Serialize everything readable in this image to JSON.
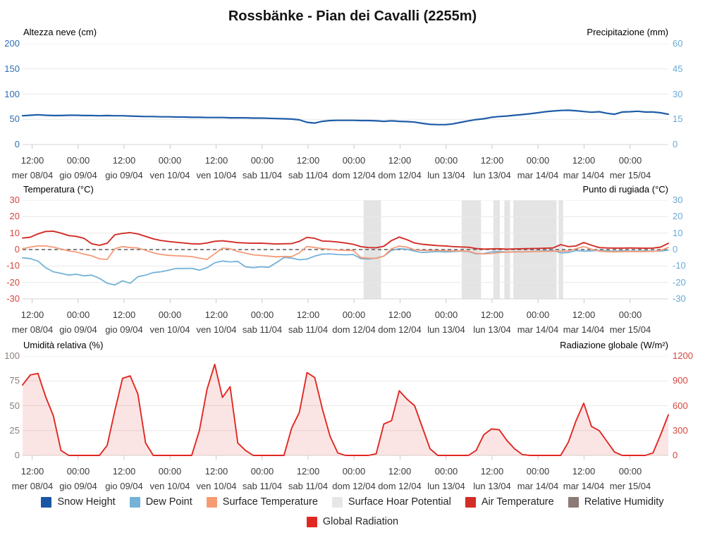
{
  "title": "Rossbänke - Pian dei Cavalli (2255m)",
  "chart_data": {
    "type": "line",
    "x_axis": {
      "first_tick_hour": 2.5,
      "tick_step_hours": 12,
      "total_hours": 168.5,
      "sample_step_hours": 2,
      "tick_times": [
        "12:00",
        "00:00",
        "12:00",
        "00:00",
        "12:00",
        "00:00",
        "12:00",
        "00:00",
        "12:00",
        "00:00",
        "12:00",
        "00:00",
        "12:00",
        "00:00"
      ],
      "tick_dates": [
        "mer 08/04",
        "gio 09/04",
        "gio 09/04",
        "ven 10/04",
        "ven 10/04",
        "sab 11/04",
        "sab 11/04",
        "dom 12/04",
        "dom 12/04",
        "lun 13/04",
        "lun 13/04",
        "mar 14/04",
        "mar 14/04",
        "mer 15/04"
      ]
    },
    "band_color": "#e4e4e4",
    "grid_color": "#e9e9e9",
    "axis_line_color": "#d6d6d6",
    "tick_mark_color": "#c9c9c9",
    "charts": [
      {
        "id": "snow-precipitation",
        "axes": {
          "left": {
            "title": "Altezza neve (cm)",
            "color": "#2e6db4",
            "ticks": [
              "200",
              "150",
              "100",
              "50",
              "0"
            ],
            "min": 0,
            "max": 200
          },
          "right": {
            "title": "Precipitazione (mm)",
            "color": "#69aad6",
            "ticks": [
              "60",
              "45",
              "30",
              "15",
              "0"
            ],
            "min": 0,
            "max": 60
          }
        },
        "series": [
          {
            "name": "snow-height",
            "axis": "left",
            "color": "#1f5da8",
            "width": 2.2,
            "values": [
              57,
              58,
              59,
              58,
              57.5,
              57.5,
              58,
              58,
              57.5,
              57.5,
              57,
              57.5,
              57,
              57,
              56.5,
              56,
              55.5,
              55.5,
              55,
              55,
              54.5,
              54.5,
              54,
              54,
              53.5,
              53.5,
              53.5,
              53,
              53,
              53,
              52.5,
              52.5,
              52,
              51.5,
              51,
              50.5,
              49,
              44,
              42.5,
              46,
              47.5,
              48,
              48,
              48,
              47.5,
              47.5,
              47,
              46,
              47,
              46,
              45.5,
              44.5,
              42,
              40,
              39.5,
              39.5,
              41,
              44,
              47,
              49.5,
              51,
              54,
              55.5,
              56.5,
              58,
              59.5,
              61,
              63,
              65,
              66.5,
              67.5,
              68,
              67,
              65.5,
              64,
              65,
              62,
              60,
              64.5,
              65,
              66,
              64.5,
              64.5,
              63,
              60
            ]
          }
        ]
      },
      {
        "id": "temperature-dewpoint",
        "zero_dashed": true,
        "zero_dash_color": "#5a5a5a",
        "axes": {
          "left": {
            "title": "Temperatura (°C)",
            "color": "#d9453c",
            "ticks": [
              "30",
              "20",
              "10",
              "0",
              "-10",
              "-20",
              "-30"
            ],
            "min": -30,
            "max": 30
          },
          "right": {
            "title": "Punto di rugiada (°C)",
            "color": "#69aad6",
            "ticks": [
              "30",
              "20",
              "10",
              "0",
              "-10",
              "-20",
              "-30"
            ],
            "min": -30,
            "max": 30
          }
        },
        "bands": [
          {
            "from": 0.528,
            "to": 0.555
          },
          {
            "from": 0.68,
            "to": 0.71
          },
          {
            "from": 0.729,
            "to": 0.739
          },
          {
            "from": 0.746,
            "to": 0.755
          },
          {
            "from": 0.76,
            "to": 0.827
          },
          {
            "from": 0.83,
            "to": 0.837
          }
        ],
        "series": [
          {
            "name": "dew-point",
            "axis": "left",
            "color": "#74b2d8",
            "width": 1.8,
            "values": [
              -5,
              -5.5,
              -7,
              -11,
              -13.5,
              -14.5,
              -15.5,
              -15,
              -16,
              -15.5,
              -17.5,
              -20.5,
              -21.5,
              -19,
              -20.5,
              -16.5,
              -15.5,
              -14,
              -13.5,
              -12.5,
              -11.5,
              -11.5,
              -11.4,
              -12.5,
              -11,
              -8,
              -7,
              -7.5,
              -7.2,
              -10.5,
              -11,
              -10.5,
              -10.8,
              -8,
              -4.8,
              -5.2,
              -6.2,
              -5.8,
              -4,
              -2.8,
              -2.6,
              -3,
              -3.2,
              -3,
              -5.5,
              -5.8,
              -5.2,
              -4,
              -0.5,
              0.5,
              0.2,
              -1,
              -1.8,
              -1.5,
              -1.2,
              -1.5,
              -1.2,
              -1,
              -1.2,
              -2.6,
              -2.4,
              -1.4,
              -1.2,
              -1.5,
              -1.3,
              -1.4,
              -1.2,
              -1,
              -0.8,
              -0.5,
              -2,
              -1.8,
              -0.6,
              -1,
              -0.8,
              -0.6,
              -0.8,
              -1,
              -0.8,
              -0.9,
              -1,
              -0.8,
              -1,
              -0.9,
              -0.4
            ]
          },
          {
            "name": "surface-temperature",
            "axis": "left",
            "color": "#f59b78",
            "width": 1.8,
            "values": [
              0.5,
              1.5,
              2.2,
              2.2,
              1.5,
              0.3,
              -0.8,
              -1.5,
              -2.8,
              -3.8,
              -5.6,
              -6,
              0.5,
              1.8,
              1.2,
              1,
              -0.5,
              -2,
              -3,
              -3.5,
              -3.8,
              -4,
              -4.3,
              -5.2,
              -6,
              -2.5,
              0.8,
              0.5,
              -1.2,
              -2.2,
              -3.2,
              -3.6,
              -4,
              -4.4,
              -4.2,
              -4.3,
              -2,
              1.9,
              1.2,
              0.6,
              0.2,
              -0.3,
              -0.5,
              -0.6,
              -4.8,
              -5.2,
              -5.4,
              -4,
              0.5,
              2.1,
              1.5,
              -0.2,
              -0.5,
              -0.6,
              -0.6,
              -0.7,
              -0.8,
              -0.9,
              -1,
              -2.3,
              -2.6,
              -2.4,
              -1.8,
              -1.6,
              -1.5,
              -1.4,
              -1.3,
              -1.2,
              -1.1,
              -1,
              -1,
              -0.9,
              0.5,
              1.8,
              0.2,
              -1,
              -1.3,
              -1.4,
              -1.3,
              -1.2,
              -1.3,
              -1.2,
              -1.1,
              -0.5,
              1.3
            ]
          },
          {
            "name": "air-temperature",
            "axis": "left",
            "color": "#d22d26",
            "width": 1.9,
            "values": [
              7,
              7.5,
              9.5,
              11,
              11.2,
              10,
              8.5,
              8,
              6.8,
              3.5,
              2.6,
              3.8,
              9,
              9.8,
              10.3,
              9.5,
              8,
              6.5,
              5.5,
              4.9,
              4.4,
              4,
              3.5,
              3.4,
              4,
              5,
              5.3,
              4.8,
              4.2,
              4,
              3.8,
              3.9,
              3.6,
              3.4,
              3.5,
              3.6,
              5,
              7.4,
              6.8,
              5.2,
              5,
              4.6,
              4,
              3.2,
              1.8,
              1.2,
              1.1,
              2,
              5.5,
              7.6,
              6,
              4,
              3.2,
              2.8,
              2.4,
              2.2,
              1.8,
              1.6,
              1.4,
              0.6,
              0.3,
              0.4,
              0.5,
              0.2,
              0.4,
              0.5,
              0.6,
              0.7,
              0.8,
              1,
              3,
              1.8,
              2.2,
              4.3,
              2.6,
              1.2,
              1,
              0.9,
              0.9,
              1,
              0.9,
              0.8,
              0.9,
              1.5,
              3.8
            ]
          }
        ]
      },
      {
        "id": "humidity-radiation",
        "axes": {
          "left": {
            "title": "Umidità relativa (%)",
            "color": "#8b7f7c",
            "ticks": [
              "100",
              "75",
              "50",
              "25",
              "0"
            ],
            "min": 0,
            "max": 100
          },
          "right": {
            "title": "Radiazione globale (W/m²)",
            "color": "#d9453c",
            "ticks": [
              "1200",
              "900",
              "600",
              "300",
              "0"
            ],
            "min": 0,
            "max": 1200
          }
        },
        "series": [
          {
            "name": "global-radiation",
            "axis": "right",
            "color": "#e02823",
            "width": 1.9,
            "fill": "rgba(224,40,35,0.12)",
            "values": [
              850,
              970,
              990,
              710,
              480,
              60,
              0,
              0,
              0,
              0,
              0,
              120,
              540,
              930,
              960,
              740,
              150,
              0,
              0,
              0,
              0,
              0,
              0,
              300,
              800,
              1100,
              700,
              830,
              150,
              60,
              0,
              0,
              0,
              0,
              0,
              330,
              520,
              1000,
              940,
              560,
              230,
              30,
              0,
              0,
              0,
              0,
              20,
              380,
              420,
              780,
              680,
              600,
              340,
              80,
              0,
              0,
              0,
              0,
              0,
              60,
              250,
              320,
              310,
              180,
              80,
              10,
              0,
              0,
              0,
              0,
              0,
              160,
              420,
              630,
              350,
              300,
              170,
              40,
              0,
              0,
              0,
              0,
              30,
              250,
              490
            ]
          }
        ]
      }
    ]
  },
  "legend": {
    "rows": [
      [
        {
          "label": "Snow Height",
          "color": "#1a56a3"
        },
        {
          "label": "Dew Point",
          "color": "#74b2d8"
        },
        {
          "label": "Surface Temperature",
          "color": "#f79b73"
        },
        {
          "label": "Surface Hoar Potential",
          "color": "#e6e6e6"
        },
        {
          "label": "Air Temperature",
          "color": "#d22d26"
        },
        {
          "label": "Relative Humidity",
          "color": "#8b7a75"
        }
      ],
      [
        {
          "label": "Global Radiation",
          "color": "#e02823"
        }
      ]
    ]
  }
}
